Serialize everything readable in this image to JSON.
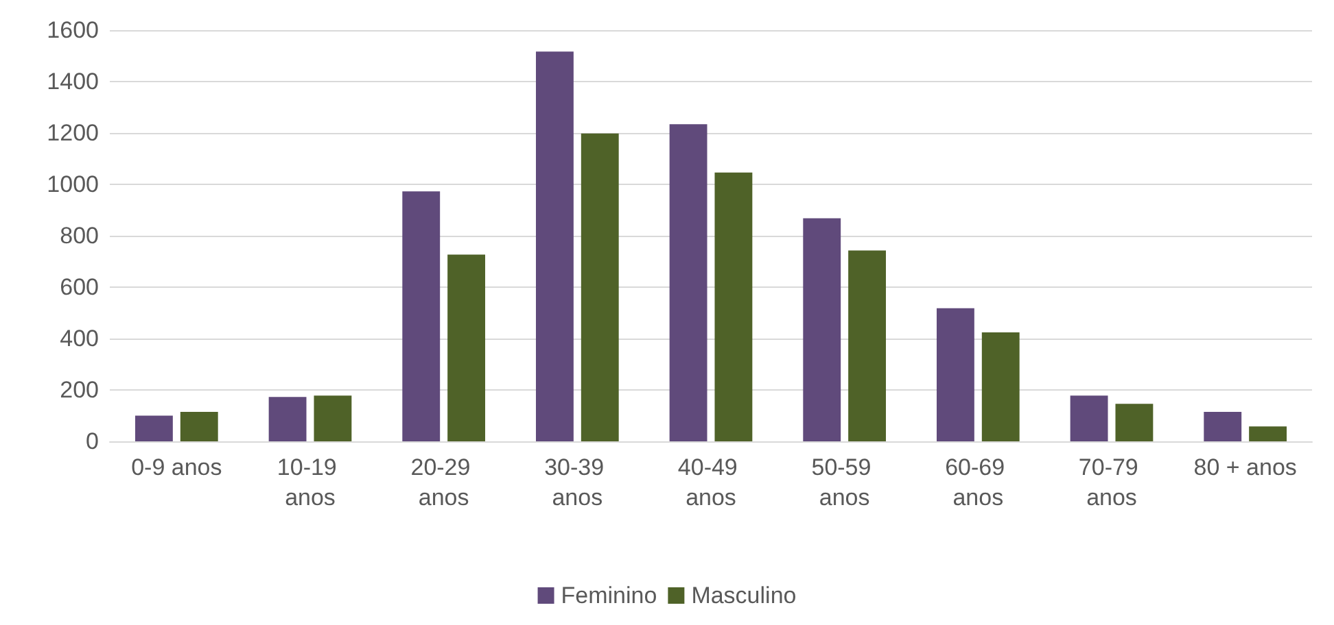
{
  "chart_data": {
    "type": "bar",
    "categories": [
      "0-9 anos",
      "10-19 anos",
      "20-29 anos",
      "30-39 anos",
      "40-49 anos",
      "50-59 anos",
      "60-69 anos",
      "70-79 anos",
      "80 + anos"
    ],
    "series": [
      {
        "name": "Feminino",
        "color": "#604a7b",
        "values": [
          100,
          173,
          973,
          1517,
          1234,
          868,
          518,
          178,
          115
        ]
      },
      {
        "name": "Masculino",
        "color": "#4f6228",
        "values": [
          115,
          178,
          727,
          1198,
          1046,
          743,
          424,
          146,
          58
        ]
      }
    ],
    "ylim": [
      0,
      1600
    ],
    "yticks": [
      0,
      200,
      400,
      600,
      800,
      1000,
      1200,
      1400,
      1600
    ],
    "grid": "y",
    "legend": "bottom"
  }
}
